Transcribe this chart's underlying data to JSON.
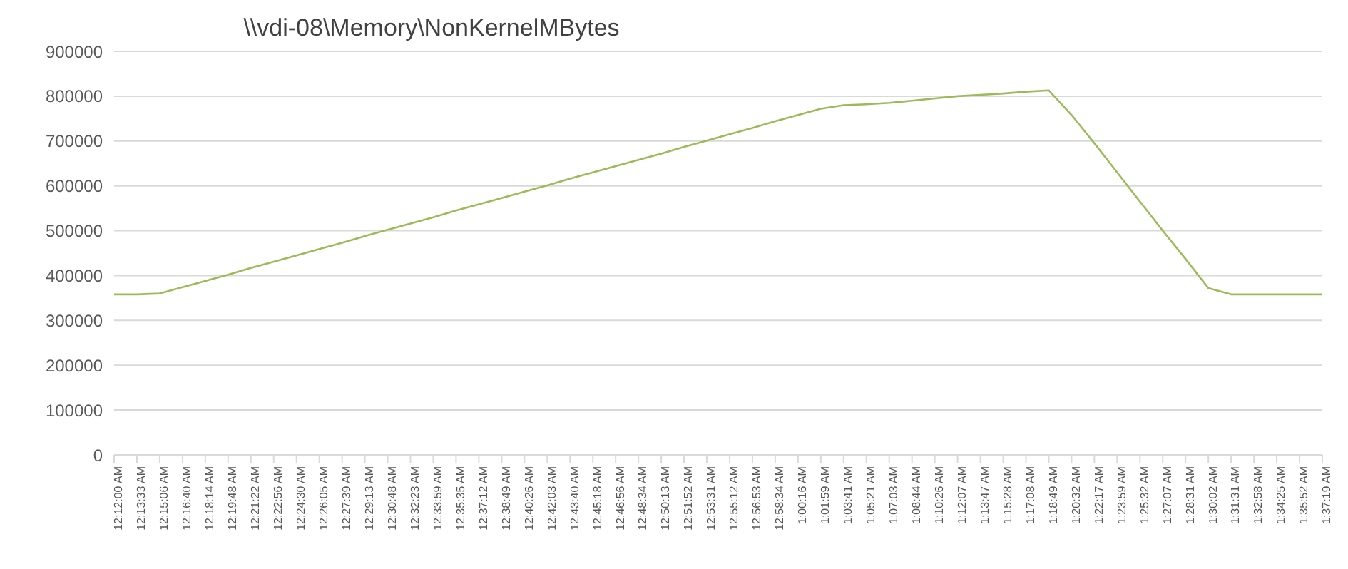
{
  "chart_data": {
    "type": "line",
    "title": "\\\\vdi-08\\Memory\\NonKernelMBytes",
    "categories": [
      "12:12:00 AM",
      "12:13:33 AM",
      "12:15:06 AM",
      "12:16:40 AM",
      "12:18:14 AM",
      "12:19:48 AM",
      "12:21:22 AM",
      "12:22:56 AM",
      "12:24:30 AM",
      "12:26:05 AM",
      "12:27:39 AM",
      "12:29:13 AM",
      "12:30:48 AM",
      "12:32:23 AM",
      "12:33:59 AM",
      "12:35:35 AM",
      "12:37:12 AM",
      "12:38:49 AM",
      "12:40:26 AM",
      "12:42:03 AM",
      "12:43:40 AM",
      "12:45:18 AM",
      "12:46:56 AM",
      "12:48:34 AM",
      "12:50:13 AM",
      "12:51:52 AM",
      "12:53:31 AM",
      "12:55:12 AM",
      "12:56:53 AM",
      "12:58:34 AM",
      "1:00:16 AM",
      "1:01:59 AM",
      "1:03:41 AM",
      "1:05:21 AM",
      "1:07:03 AM",
      "1:08:44 AM",
      "1:10:26 AM",
      "1:12:07 AM",
      "1:13:47 AM",
      "1:15:28 AM",
      "1:17:08 AM",
      "1:18:49 AM",
      "1:20:32 AM",
      "1:22:17 AM",
      "1:23:59 AM",
      "1:25:32 AM",
      "1:27:07 AM",
      "1:28:31 AM",
      "1:30:02 AM",
      "1:31:31 AM",
      "1:32:58 AM",
      "1:34:25 AM",
      "1:35:52 AM",
      "1:37:19 AM"
    ],
    "values": [
      358000,
      358000,
      360000,
      374000,
      388000,
      402000,
      417000,
      431000,
      445000,
      459000,
      473000,
      488000,
      502000,
      516000,
      530000,
      545000,
      559000,
      573000,
      587000,
      601000,
      616000,
      630000,
      644000,
      658000,
      672000,
      687000,
      701000,
      715000,
      729000,
      744000,
      758000,
      772000,
      780000,
      782000,
      785000,
      790000,
      795000,
      800000,
      803000,
      806000,
      810000,
      813000,
      758000,
      695000,
      630000,
      565000,
      500000,
      437000,
      372000,
      358000,
      358000,
      358000,
      358000,
      358000
    ],
    "color": "#9bbb59",
    "ylim": [
      0,
      900000
    ],
    "yticks": [
      0,
      100000,
      200000,
      300000,
      400000,
      500000,
      600000,
      700000,
      800000,
      900000
    ],
    "grid": "y",
    "legend": false,
    "marker": "none",
    "line_style": "solid"
  }
}
